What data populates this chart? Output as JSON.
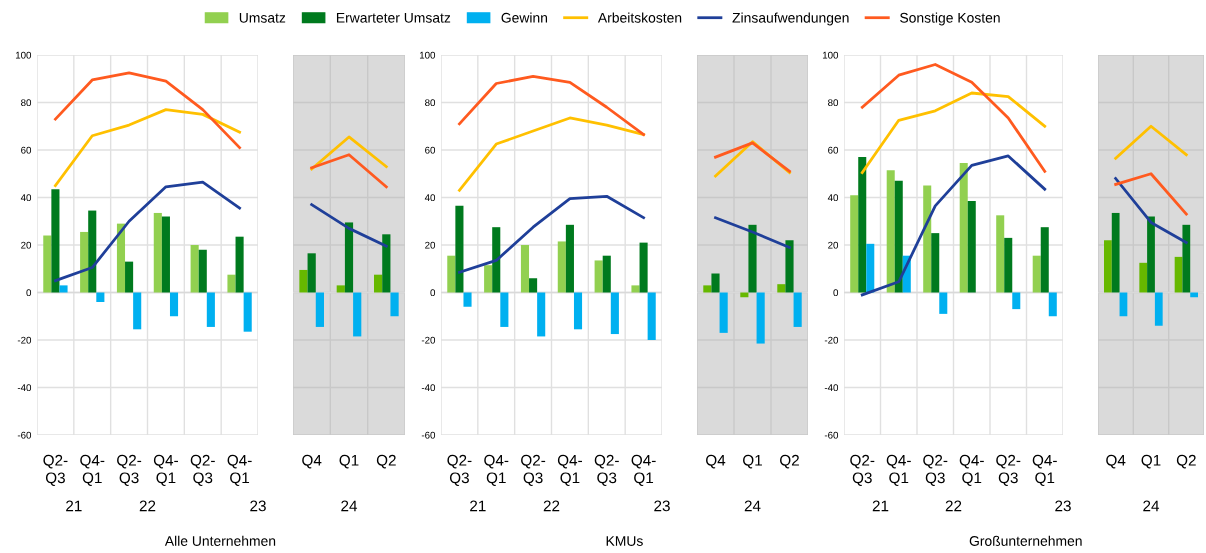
{
  "chart_data": [
    {
      "type": "bar",
      "categories": [
        "Q2-\nQ3",
        "Q4-\nQ1",
        "Q2-\nQ3",
        "Q4-\nQ1",
        "Q2-\nQ3",
        "Q4-\nQ1"
      ],
      "xlabel": "Alle Unternehmen",
      "annotations": [
        "21",
        "22",
        "23"
      ],
      "ylim": [
        -60,
        100
      ],
      "yticks": [
        -60,
        -40,
        -20,
        0,
        20,
        40,
        60,
        80,
        100
      ],
      "grid": true,
      "legend": "top",
      "series": [
        {
          "name": "Umsatz",
          "color": "#92d050",
          "values": [
            24,
            25.5,
            29,
            33.5,
            20,
            7.5
          ]
        },
        {
          "name": "Erwarteter Umsatz",
          "color": "#007a1e",
          "values": [
            43.5,
            34.5,
            13,
            32,
            18,
            23.5
          ]
        },
        {
          "name": "Gewinn",
          "color": "#00b0f0",
          "values": [
            3,
            -4,
            -15.5,
            -10,
            -14.5,
            -16.5
          ]
        },
        {
          "name": "Arbeitskosten",
          "type": "line",
          "color": "#ffc000",
          "values": [
            45,
            66,
            70.5,
            77,
            75,
            67.5
          ]
        },
        {
          "name": "Zinsaufwendungen",
          "type": "line",
          "color": "#1f3f99",
          "values": [
            5,
            10.5,
            30,
            44.5,
            46.5,
            35.5
          ]
        },
        {
          "name": "Sonstige Kosten",
          "type": "line",
          "color": "#ff5a1f",
          "values": [
            73,
            89.5,
            92.5,
            89,
            77,
            61
          ]
        }
      ]
    },
    {
      "type": "bar",
      "categories": [
        "Q4",
        "Q1",
        "Q2"
      ],
      "annotations": [
        "24"
      ],
      "ylim": [
        -60,
        100
      ],
      "yticks": [
        -60,
        -40,
        -20,
        0,
        20,
        40,
        60,
        80,
        100
      ],
      "grid": true,
      "tick_labels": "x",
      "series": [
        {
          "color": "#66b800",
          "values": [
            9.5,
            3,
            7.5
          ]
        },
        {
          "color": "#007a1e",
          "values": [
            16.5,
            29.5,
            24.5
          ]
        },
        {
          "color": "#00b0f0",
          "values": [
            -14.5,
            -18.5,
            -10
          ]
        },
        {
          "type": "line",
          "color": "#ffc000",
          "values": [
            52,
            65.5,
            53
          ]
        },
        {
          "type": "line",
          "color": "#1f3f99",
          "values": [
            37,
            27,
            19.5
          ]
        },
        {
          "type": "line",
          "color": "#ff5a1f",
          "values": [
            52.5,
            58,
            44.5
          ]
        }
      ]
    },
    {
      "type": "bar",
      "categories": [
        "Q2-\nQ3",
        "Q4-\nQ1",
        "Q2-\nQ3",
        "Q4-\nQ1",
        "Q2-\nQ3",
        "Q4-\nQ1"
      ],
      "xlabel": "KMUs",
      "annotations": [
        "21",
        "22",
        "23"
      ],
      "ylim": [
        -60,
        100
      ],
      "yticks": [
        -60,
        -40,
        -20,
        0,
        20,
        40,
        60,
        80,
        100
      ],
      "grid": true,
      "series": [
        {
          "color": "#92d050",
          "values": [
            15.5,
            11.5,
            20,
            21.5,
            13.5,
            3
          ]
        },
        {
          "color": "#007a1e",
          "values": [
            36.5,
            27.5,
            6,
            28.5,
            15.5,
            21
          ]
        },
        {
          "color": "#00b0f0",
          "values": [
            -6,
            -14.5,
            -18.5,
            -15.5,
            -17.5,
            -20
          ]
        },
        {
          "type": "line",
          "color": "#ffc000",
          "values": [
            43,
            62.5,
            68,
            73.5,
            70.5,
            66.5
          ]
        },
        {
          "type": "line",
          "color": "#1f3f99",
          "values": [
            8.5,
            13.5,
            27.5,
            39.5,
            40.5,
            31.5
          ]
        },
        {
          "type": "line",
          "color": "#ff5a1f",
          "values": [
            71,
            88,
            91,
            88.5,
            78,
            66.5
          ]
        }
      ]
    },
    {
      "type": "bar",
      "categories": [
        "Q4",
        "Q1",
        "Q2"
      ],
      "annotations": [
        "24"
      ],
      "ylim": [
        -60,
        100
      ],
      "yticks": [
        -60,
        -40,
        -20,
        0,
        20,
        40,
        60,
        80,
        100
      ],
      "grid": true,
      "tick_labels": "x",
      "series": [
        {
          "color": "#66b800",
          "values": [
            3,
            -2,
            3.5
          ]
        },
        {
          "color": "#007a1e",
          "values": [
            8,
            28.5,
            22
          ]
        },
        {
          "color": "#00b0f0",
          "values": [
            -17,
            -21.5,
            -14.5
          ]
        },
        {
          "type": "line",
          "color": "#ffc000",
          "values": [
            49,
            63.5,
            50.5
          ]
        },
        {
          "type": "line",
          "color": "#1f3f99",
          "values": [
            31.5,
            25.5,
            19
          ]
        },
        {
          "type": "line",
          "color": "#ff5a1f",
          "values": [
            57,
            63,
            51
          ]
        }
      ]
    },
    {
      "type": "bar",
      "categories": [
        "Q2-\nQ3",
        "Q4-\nQ1",
        "Q2-\nQ3",
        "Q4-\nQ1",
        "Q2-\nQ3",
        "Q4-\nQ1"
      ],
      "xlabel": "Großunternehmen",
      "annotations": [
        "21",
        "22",
        "23"
      ],
      "ylim": [
        -60,
        100
      ],
      "yticks": [
        -60,
        -40,
        -20,
        0,
        20,
        40,
        60,
        80,
        100
      ],
      "grid": true,
      "series": [
        {
          "color": "#92d050",
          "values": [
            41,
            51.5,
            45,
            54.5,
            32.5,
            15.5
          ]
        },
        {
          "color": "#007a1e",
          "values": [
            57,
            47,
            25,
            38.5,
            23,
            27.5
          ]
        },
        {
          "color": "#00b0f0",
          "values": [
            20.5,
            15.5,
            -9,
            0,
            -7,
            -10
          ]
        },
        {
          "type": "line",
          "color": "#ffc000",
          "values": [
            50.5,
            72.5,
            76.5,
            84,
            82.5,
            70
          ]
        },
        {
          "type": "line",
          "color": "#1f3f99",
          "values": [
            -1,
            4.5,
            36.5,
            53.5,
            57.5,
            43.5
          ]
        },
        {
          "type": "line",
          "color": "#ff5a1f",
          "values": [
            78,
            91.5,
            96,
            88.5,
            73.5,
            51
          ]
        }
      ]
    },
    {
      "type": "bar",
      "categories": [
        "Q4",
        "Q1",
        "Q2"
      ],
      "annotations": [
        "24"
      ],
      "ylim": [
        -60,
        100
      ],
      "yticks": [
        -60,
        -40,
        -20,
        0,
        20,
        40,
        60,
        80,
        100
      ],
      "grid": true,
      "tick_labels": "x",
      "series": [
        {
          "color": "#66b800",
          "values": [
            22,
            12.5,
            15
          ]
        },
        {
          "color": "#007a1e",
          "values": [
            33.5,
            32,
            28.5
          ]
        },
        {
          "color": "#00b0f0",
          "values": [
            -10,
            -14,
            -2
          ]
        },
        {
          "type": "line",
          "color": "#ffc000",
          "values": [
            56.5,
            70,
            58
          ]
        },
        {
          "type": "line",
          "color": "#1f3f99",
          "values": [
            48,
            29.5,
            21
          ]
        },
        {
          "type": "line",
          "color": "#ff5a1f",
          "values": [
            45.5,
            50,
            33
          ]
        }
      ]
    }
  ]
}
